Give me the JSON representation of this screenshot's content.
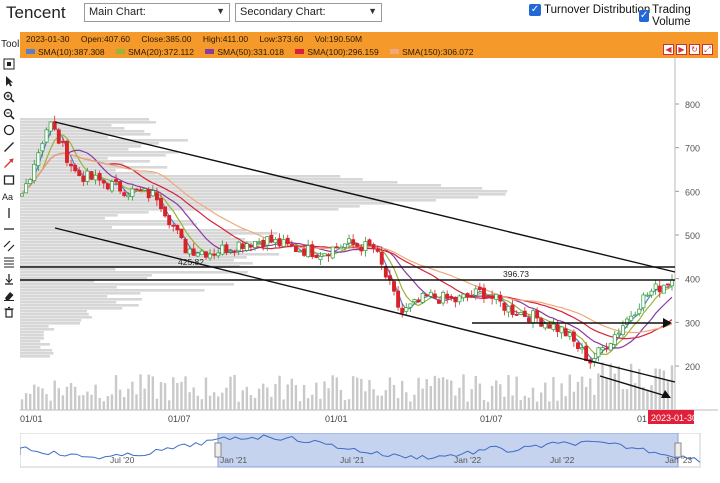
{
  "app": {
    "ticker": "Tencent",
    "main_chart_label": "Main Chart:",
    "secondary_chart_label": "Secondary Chart:",
    "turnover_distribution": "Turnover Distribution",
    "trading_volume": "Trading Volume",
    "tool_label": "Tool"
  },
  "quote": {
    "date": "2023-01-30",
    "open": "Open:407.60",
    "close": "Close:385.00",
    "high": "High:411.00",
    "low": "Low:373.60",
    "vol": "Vol:190.50M"
  },
  "sma": [
    {
      "label": "SMA(10):387.308",
      "color": "#5a7fc4"
    },
    {
      "label": "SMA(20):372.112",
      "color": "#9ab33a"
    },
    {
      "label": "SMA(50):331.018",
      "color": "#8a3aa0"
    },
    {
      "label": "SMA(100):296.159",
      "color": "#d8203a"
    },
    {
      "label": "SMA(150):306.072",
      "color": "#f0a878"
    }
  ],
  "annotations": {
    "level_high": "425.82",
    "level_low": "396.73",
    "current_date_tag": "2023-01-30"
  },
  "colors": {
    "up": "#2e9b3a",
    "down": "#d8232a",
    "accent": "#f59a2a",
    "date_tag": "#e0203a"
  },
  "chart_data": {
    "type": "candlestick",
    "y_ticks": [
      800,
      700,
      600,
      500,
      400,
      300,
      200
    ],
    "ylim": [
      150,
      820
    ],
    "x_ticks": [
      "01/01",
      "01/07",
      "01/01",
      "01/07",
      "01"
    ],
    "nav_ticks": [
      "Jul '20",
      "Jan '21",
      "Jul '21",
      "Jan '22",
      "Jul '22",
      "Jan '23"
    ],
    "price_path": [
      [
        "2021-01",
        590
      ],
      [
        "2021-02",
        760
      ],
      [
        "2021-03",
        640
      ],
      [
        "2021-04",
        620
      ],
      [
        "2021-05",
        600
      ],
      [
        "2021-06",
        590
      ],
      [
        "2021-07",
        470
      ],
      [
        "2021-08",
        460
      ],
      [
        "2021-09",
        480
      ],
      [
        "2021-10",
        490
      ],
      [
        "2021-11",
        470
      ],
      [
        "2021-12",
        460
      ],
      [
        "2022-01",
        480
      ],
      [
        "2022-02",
        470
      ],
      [
        "2022-03",
        320
      ],
      [
        "2022-04",
        360
      ],
      [
        "2022-05",
        350
      ],
      [
        "2022-06",
        370
      ],
      [
        "2022-07",
        330
      ],
      [
        "2022-08",
        310
      ],
      [
        "2022-09",
        280
      ],
      [
        "2022-10",
        210
      ],
      [
        "2022-11",
        280
      ],
      [
        "2022-12",
        360
      ],
      [
        "2023-01",
        400
      ]
    ]
  }
}
